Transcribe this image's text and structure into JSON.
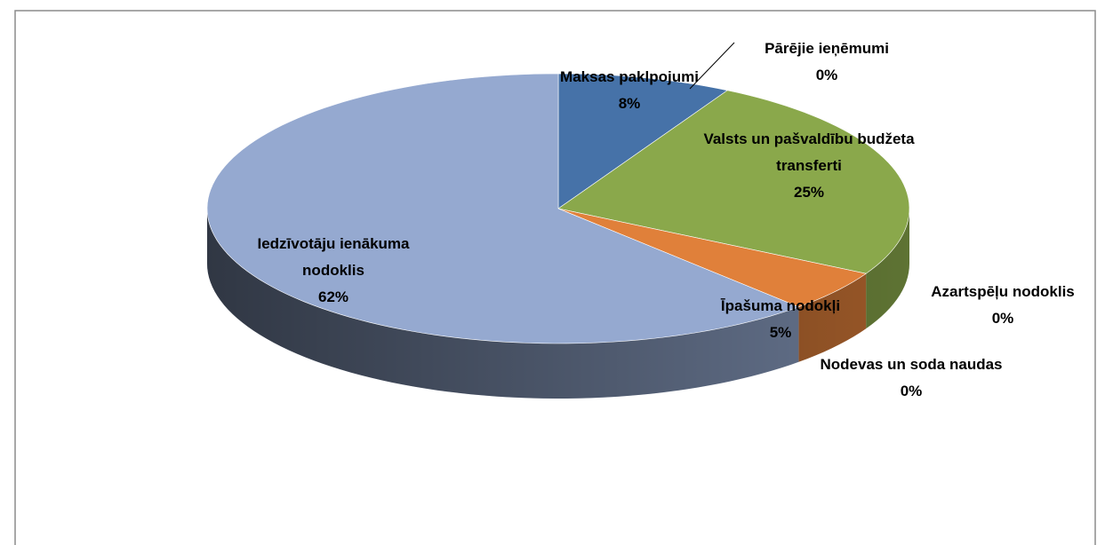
{
  "chart_data": {
    "type": "pie",
    "categories": [
      "Maksas paklpojumi",
      "Pārējie ieņēmumi",
      "Valsts un pašvaldību budžeta transferti",
      "Azartspēļu nodoklis",
      "Nodevas un soda naudas",
      "Īpašuma nodokļi",
      "Iedzīvotāju ienākuma nodoklis"
    ],
    "values": [
      8,
      0,
      25,
      0,
      0,
      5,
      62
    ],
    "value_labels": [
      "8%",
      "0%",
      "25%",
      "0%",
      "0%",
      "5%",
      "62%"
    ],
    "colors": [
      "#4672a8",
      "#c0504d",
      "#8aa84b",
      "#8064a2",
      "#4bacc6",
      "#e0803a",
      "#95a9d0"
    ]
  }
}
